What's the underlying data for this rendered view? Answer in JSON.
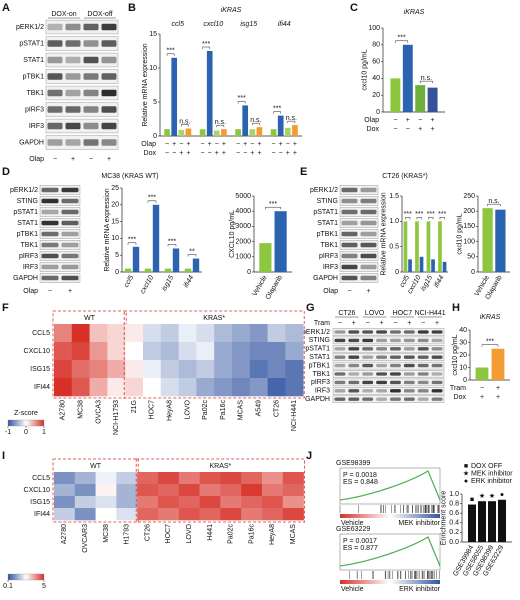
{
  "panel_labels": [
    "A",
    "B",
    "C",
    "D",
    "E",
    "F",
    "G",
    "H",
    "I",
    "J"
  ],
  "blots": [
    {
      "headers": [
        "DOX-on",
        "DOX-off"
      ],
      "rows": [
        "pERK1/2",
        "pSTAT1",
        "STAT1",
        "pTBK1",
        "TBK1",
        "pIRF3",
        "IRF3",
        "GAPDH"
      ],
      "treatment": "Olap",
      "signs": [
        "−",
        "+"
      ]
    },
    {
      "title": "MC38 (KRAS WT)",
      "rows": [
        "pERK1/2",
        "STING",
        "pSTAT1",
        "STAT1",
        "pTBK1",
        "TBK1",
        "pIRF3",
        "IRF3",
        "GAPDH"
      ],
      "treatment": "Olap",
      "signs": [
        "−",
        "+"
      ]
    },
    {
      "title": "CT26 (KRAS*)",
      "rows": [
        "pERK1/2",
        "STING",
        "pSTAT1",
        "STAT1",
        "pTBK1",
        "TBK1",
        "pIRF3",
        "IRF3",
        "GAPDH"
      ],
      "treatment": "Olap",
      "signs": [
        "−",
        "+"
      ]
    },
    {
      "headers": [
        "CT26",
        "LOVO",
        "HOC7",
        "NCI-H441"
      ],
      "rows": [
        "pERK1/2",
        "STING",
        "pSTAT1",
        "STAT1",
        "pTBK1",
        "TBK1",
        "pIRF3",
        "IRF3",
        "GAPDH"
      ],
      "treatment": "Tram",
      "signs": [
        "−",
        "+"
      ]
    }
  ],
  "chart_data": [
    {
      "type": "bar",
      "title": "iKRAS",
      "ylabel": "Relative mRNA expression",
      "categories": [
        "ccl5",
        "cxcl10",
        "isg15",
        "ifi44"
      ],
      "category_labels": "top",
      "series": [
        {
          "color": "#8dc63f",
          "values": [
            1,
            1,
            1,
            1
          ]
        },
        {
          "color": "#2b63b0",
          "values": [
            11.5,
            12.5,
            4.5,
            3
          ]
        },
        {
          "color": "#a9d46b",
          "values": [
            0.9,
            0.8,
            1,
            1.2
          ]
        },
        {
          "color": "#f39c34",
          "values": [
            1.1,
            1,
            1.3,
            1.6
          ]
        }
      ],
      "ylim": [
        0,
        15
      ],
      "yticks": [
        0,
        5,
        10,
        15
      ],
      "annotations": [
        [
          "***",
          "n.s."
        ],
        [
          "***",
          "n.s."
        ],
        [
          "***",
          "n.s."
        ],
        [
          "***",
          "n.s."
        ]
      ],
      "conditions": [
        {
          "name": "Olap",
          "signs": [
            "−",
            "+",
            "−",
            "+"
          ]
        },
        {
          "name": "Dox",
          "signs": [
            "−",
            "−",
            "+",
            "+"
          ]
        }
      ]
    },
    {
      "type": "bar",
      "title": "iKRAS",
      "ylabel": "cxcl10 pg/mL",
      "values": [
        40,
        80,
        32,
        29
      ],
      "colors": [
        "#8dc63f",
        "#2b63b0",
        "#6fae3a",
        "#35519c"
      ],
      "ylim": [
        0,
        100
      ],
      "yticks": [
        0,
        20,
        40,
        60,
        80,
        100
      ],
      "annotations": [
        "***",
        "n.s."
      ],
      "conditions": [
        {
          "name": "Olap",
          "signs": [
            "−",
            "+",
            "−",
            "+"
          ]
        },
        {
          "name": "Dox",
          "signs": [
            "−",
            "−",
            "+",
            "+"
          ]
        }
      ]
    },
    {
      "type": "bar",
      "ylabel": "Relative mRNA expression",
      "categories": [
        "ccl5",
        "cxcl10",
        "isg15",
        "ifi44"
      ],
      "category_labels": "rotated",
      "series": [
        {
          "color": "#8dc63f",
          "values": [
            1,
            1,
            1,
            1
          ]
        },
        {
          "color": "#2b63b0",
          "values": [
            7.5,
            20,
            7,
            4
          ]
        }
      ],
      "ylim": [
        0,
        25
      ],
      "yticks": [
        0,
        5,
        10,
        15,
        20,
        25
      ],
      "annotations": [
        [
          "***"
        ],
        [
          "***"
        ],
        [
          "***"
        ],
        [
          "**"
        ]
      ]
    },
    {
      "type": "bar",
      "ylabel": "CXCL10 pg/mL",
      "categories": [
        "Vehicle",
        "Olaparib"
      ],
      "category_labels": "rotated",
      "values": [
        1900,
        4000
      ],
      "colors": [
        "#8dc63f",
        "#2b63b0"
      ],
      "ylim": [
        0,
        5000
      ],
      "yticks": [
        0,
        1000,
        2000,
        3000,
        4000,
        5000
      ],
      "annotations": [
        "***"
      ]
    },
    {
      "type": "bar",
      "ylabel": "Relative mRNA expression",
      "categories": [
        "ccl5",
        "cxcl10",
        "isg15",
        "ifi44"
      ],
      "category_labels": "rotated",
      "series": [
        {
          "color": "#8dc63f",
          "values": [
            1,
            1,
            1,
            1
          ]
        },
        {
          "color": "#2b63b0",
          "values": [
            0.25,
            0.3,
            0.25,
            0.2
          ]
        }
      ],
      "ylim": [
        0,
        1.5
      ],
      "yticks": [
        0,
        0.5,
        {
          "value": 1,
          "label": "1.0"
        },
        1.5
      ],
      "annotations": [
        [
          "***"
        ],
        [
          "***"
        ],
        [
          "***"
        ],
        [
          "***"
        ]
      ]
    },
    {
      "type": "bar",
      "ylabel": "cxcl10 pg/mL",
      "categories": [
        "Vehicle",
        "Olaparib"
      ],
      "category_labels": "rotated",
      "values": [
        210,
        205
      ],
      "colors": [
        "#8dc63f",
        "#2b63b0"
      ],
      "ylim": [
        0,
        250
      ],
      "yticks": [
        0,
        50,
        100,
        150,
        200,
        250
      ],
      "annotations": [
        "n.s."
      ]
    },
    {
      "type": "bar",
      "title": "iKRAS",
      "ylabel": "cxcl10 pg/mL",
      "values": [
        10,
        25
      ],
      "colors": [
        "#8dc63f",
        "#f39c34"
      ],
      "ylim": [
        0,
        40
      ],
      "yticks": [
        0,
        10,
        20,
        30,
        40
      ],
      "annotations": [
        "***"
      ],
      "conditions": [
        {
          "name": "Tram",
          "signs": [
            "−",
            "+"
          ]
        },
        {
          "name": "Dox",
          "signs": [
            "+",
            "+"
          ]
        }
      ]
    },
    {
      "type": "bar",
      "ylabel": "Enrichment score",
      "categories": [
        "GSE39984",
        "GSE58055",
        "GSE98399",
        "GSE63229"
      ],
      "category_labels": "rotated",
      "values": [
        0.78,
        0.85,
        0.85,
        0.88
      ],
      "colors": [
        "#111111",
        "#111111",
        "#111111",
        "#111111"
      ],
      "ylim": [
        0,
        1
      ],
      "yticks": [
        {
          "value": 0,
          "label": "0.0"
        },
        0.2,
        0.4,
        0.6,
        0.8,
        {
          "value": 1,
          "label": "1.0"
        }
      ],
      "bar_markers": [
        "■",
        "★",
        "★",
        "●"
      ],
      "legend": [
        {
          "name": "DOX OFF",
          "marker": "■"
        },
        {
          "name": "MEK inhibitor",
          "marker": "★"
        },
        {
          "name": "ERK inhibitor",
          "marker": "●"
        }
      ]
    },
    {
      "type": "heatmap",
      "scale": "linear",
      "y": [
        "CCL5",
        "CXCL10",
        "ISG15",
        "IFI44"
      ],
      "groups": [
        {
          "name": "WT",
          "x": [
            "A2780",
            "MC38",
            "OVCA3",
            "NCI-H1793"
          ],
          "values": [
            [
              0.6,
              1.0,
              0.3,
              0.2
            ],
            [
              0.8,
              0.9,
              0.5,
              0.2
            ],
            [
              0.9,
              0.7,
              0.6,
              0.4
            ],
            [
              1.0,
              0.8,
              0.4,
              0.1
            ]
          ]
        },
        {
          "name": "KRAS*",
          "x": [
            "21G",
            "HOC7",
            "HeyA8",
            "LOVO",
            "Pa02c",
            "Pa16c",
            "MCAS",
            "A549",
            "CT26",
            "NCI-H441"
          ],
          "values": [
            [
              0.1,
              -0.2,
              -0.3,
              -0.1,
              -0.2,
              -0.4,
              -0.5,
              -0.6,
              -0.3,
              -0.4
            ],
            [
              0.0,
              -0.3,
              -0.4,
              -0.2,
              -0.1,
              -0.5,
              -0.6,
              -0.7,
              -0.7,
              -0.5
            ],
            [
              0.1,
              -0.1,
              -0.3,
              -0.4,
              -0.3,
              -0.5,
              -0.6,
              -0.8,
              -0.7,
              -0.8
            ],
            [
              0.2,
              0.0,
              -0.2,
              -0.3,
              -0.5,
              -0.6,
              -0.7,
              -0.6,
              -0.9,
              -0.8
            ]
          ]
        }
      ],
      "colorbar": {
        "title": "Z-score",
        "clim": [
          -1,
          1
        ],
        "ticks": [
          -1,
          0,
          1
        ]
      }
    },
    {
      "type": "heatmap",
      "scale": "log",
      "y": [
        "CCL5",
        "CXCL10",
        "ISG15",
        "IFI44"
      ],
      "groups": [
        {
          "name": "WT",
          "x": [
            "A2780",
            "OVCAR3",
            "MC38",
            "H1793"
          ],
          "values": [
            [
              0.2,
              0.3,
              0.6,
              0.4
            ],
            [
              0.3,
              0.2,
              0.8,
              0.3
            ],
            [
              0.2,
              0.4,
              0.5,
              0.3
            ],
            [
              0.4,
              0.2,
              0.7,
              0.5
            ]
          ]
        },
        {
          "name": "KRAS*",
          "x": [
            "CT26",
            "HOC7",
            "LOVO",
            "H441",
            "Pa02c",
            "Pa16c",
            "HeyA8",
            "MCAS"
          ],
          "values": [
            [
              3,
              4,
              2.5,
              3.5,
              4,
              3,
              2,
              3.5
            ],
            [
              3.5,
              3,
              4,
              2.5,
              3,
              4.5,
              2.5,
              3
            ],
            [
              2.5,
              3.5,
              3,
              4,
              2.5,
              3,
              3.5,
              2
            ],
            [
              3,
              2.5,
              3.5,
              3,
              4,
              2.5,
              3,
              4
            ]
          ]
        }
      ],
      "colorbar": {
        "clim": [
          0.1,
          5
        ],
        "ticks": [
          0.1,
          5
        ]
      }
    }
  ],
  "gsea": [
    {
      "dataset": "GSE98399",
      "p": "P = 0.0018",
      "es": "ES = 0.848",
      "left": "Vehicle",
      "right": "MEK inhibitor"
    },
    {
      "dataset": "GSE63229",
      "p": "P = 0.0017",
      "es": "ES = 0.877",
      "left": "Vehicle",
      "right": "ERK inhibitor"
    }
  ]
}
